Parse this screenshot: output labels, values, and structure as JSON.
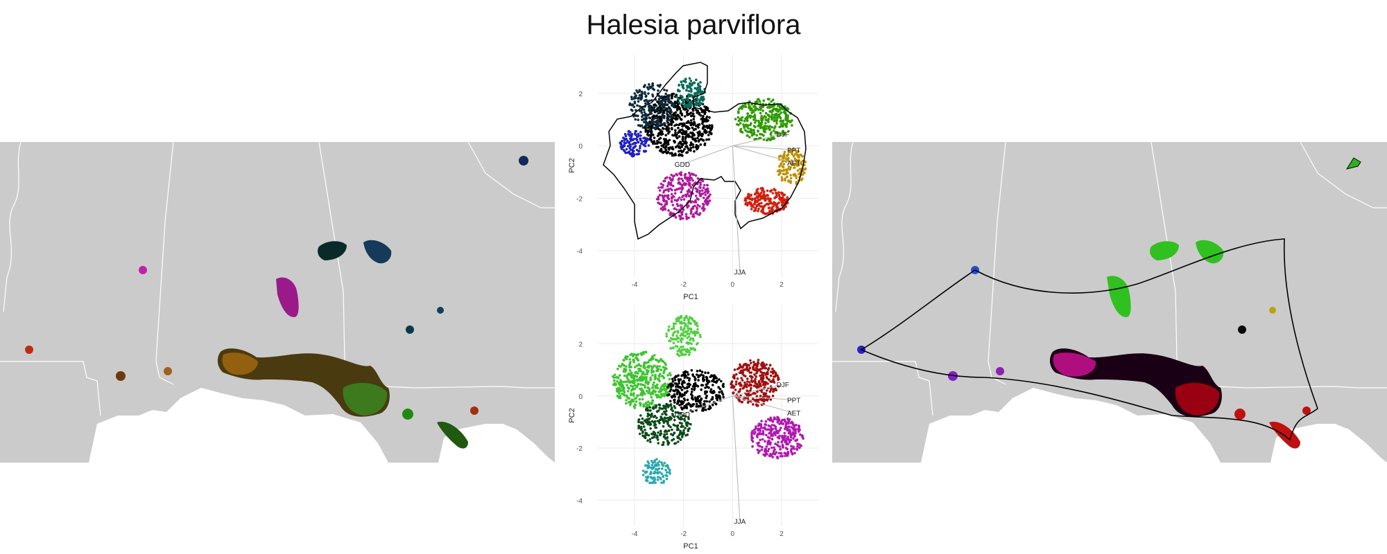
{
  "title": "Halesia parviflora",
  "colors": {
    "land": "#cbcbcb",
    "state_lines": "#ffffff",
    "grid": "#ebebeb",
    "hull": "#000000",
    "loading_line": "#bbbbbb"
  },
  "loadings": [
    {
      "label": "DJF",
      "x": 2.05,
      "y": 0.45
    },
    {
      "label": "PPT",
      "x": 2.5,
      "y": -0.15
    },
    {
      "label": "AET",
      "x": 2.5,
      "y": -0.65
    },
    {
      "label": "GDD",
      "x": -2.05,
      "y": -0.7
    },
    {
      "label": "JJA",
      "x": 0.3,
      "y": -4.8
    }
  ],
  "chart_data": [
    {
      "type": "scatter",
      "name": "pca-top",
      "xlabel": "PC1",
      "ylabel": "PC2",
      "xlim": [
        -5.5,
        3.5
      ],
      "ylim": [
        -5,
        3.5
      ],
      "xticks": [
        -4,
        -2,
        0,
        2
      ],
      "yticks": [
        -4,
        -2,
        0,
        2
      ],
      "grid": true,
      "clusters": [
        {
          "cx": -2.2,
          "cy": 0.8,
          "rx": 1.4,
          "ry": 1.2,
          "color": "#000000",
          "n": 600
        },
        {
          "cx": -3.3,
          "cy": 1.5,
          "rx": 0.9,
          "ry": 0.9,
          "color": "#0d2b3d",
          "n": 220
        },
        {
          "cx": -4.0,
          "cy": 0.1,
          "rx": 0.6,
          "ry": 0.5,
          "color": "#2020c0",
          "n": 120
        },
        {
          "cx": -1.7,
          "cy": 2.0,
          "rx": 0.6,
          "ry": 0.6,
          "color": "#0a6a5a",
          "n": 140
        },
        {
          "cx": -2.0,
          "cy": -1.9,
          "rx": 1.1,
          "ry": 0.9,
          "color": "#b0199c",
          "n": 300
        },
        {
          "cx": 1.3,
          "cy": 1.0,
          "rx": 1.2,
          "ry": 0.8,
          "color": "#2f9a00",
          "n": 320
        },
        {
          "cx": 2.4,
          "cy": -0.8,
          "rx": 0.6,
          "ry": 0.7,
          "color": "#c09000",
          "n": 150
        },
        {
          "cx": 1.4,
          "cy": -2.1,
          "rx": 0.9,
          "ry": 0.5,
          "color": "#d02010",
          "n": 220
        }
      ]
    },
    {
      "type": "scatter",
      "name": "pca-bottom",
      "xlabel": "PC1",
      "ylabel": "PC2",
      "xlim": [
        -5.5,
        3.5
      ],
      "ylim": [
        -5,
        3.5
      ],
      "xticks": [
        -4,
        -2,
        0,
        2
      ],
      "yticks": [
        -4,
        -2,
        0,
        2
      ],
      "grid": true,
      "clusters": [
        {
          "cx": -3.7,
          "cy": 0.6,
          "rx": 1.2,
          "ry": 1.1,
          "color": "#3ec430",
          "n": 420
        },
        {
          "cx": -2.0,
          "cy": 2.3,
          "rx": 0.7,
          "ry": 0.8,
          "color": "#50d040",
          "n": 160
        },
        {
          "cx": -2.8,
          "cy": -1.1,
          "rx": 1.1,
          "ry": 0.8,
          "color": "#0d4a1a",
          "n": 260
        },
        {
          "cx": -3.1,
          "cy": -2.9,
          "rx": 0.6,
          "ry": 0.5,
          "color": "#2aa8b0",
          "n": 100
        },
        {
          "cx": -1.5,
          "cy": 0.2,
          "rx": 1.2,
          "ry": 0.8,
          "color": "#000000",
          "n": 280
        },
        {
          "cx": 0.9,
          "cy": 0.5,
          "rx": 1.0,
          "ry": 0.9,
          "color": "#a01010",
          "n": 330
        },
        {
          "cx": 1.8,
          "cy": -1.6,
          "rx": 1.1,
          "ry": 0.8,
          "color": "#b018b0",
          "n": 300
        }
      ]
    }
  ]
}
